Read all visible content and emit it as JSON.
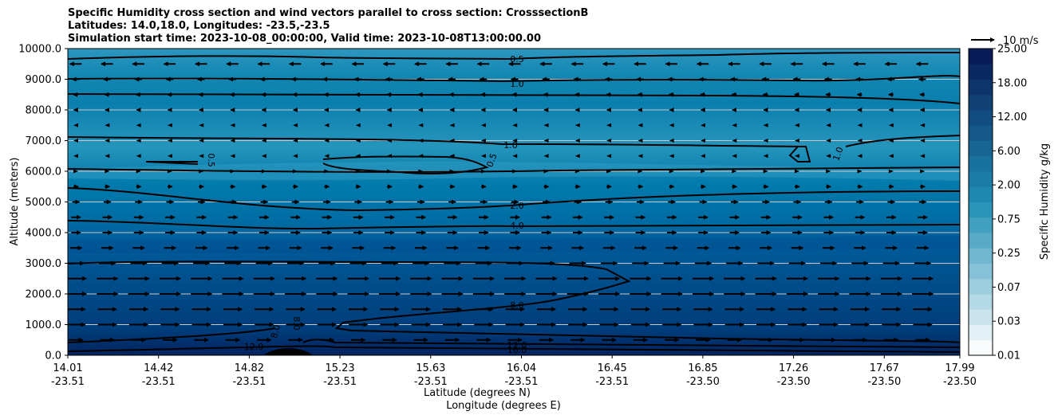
{
  "title_lines": [
    "Specific Humidity cross section and wind vectors parallel to cross section: CrosssectionB",
    "Latitudes: 14.0,18.0, Longitudes: -23.5,-23.5",
    "Simulation start time: 2023-10-08_00:00:00, Valid time: 2023-10-08T13:00:00.00"
  ],
  "chart_data": {
    "type": "contourf",
    "title": "Specific Humidity cross section and wind vectors parallel to cross section: CrosssectionB",
    "ylabel": "Altitude (meters)",
    "xlabel_lines": [
      "Latitude (degrees N)",
      "Longitude (degrees E)"
    ],
    "ylim": [
      0,
      10000
    ],
    "y_ticks": [
      0,
      1000,
      2000,
      3000,
      4000,
      5000,
      6000,
      7000,
      8000,
      9000,
      10000
    ],
    "y_tick_labels": [
      "0.0",
      "1000.0",
      "2000.0",
      "3000.0",
      "4000.0",
      "5000.0",
      "6000.0",
      "7000.0",
      "8000.0",
      "9000.0",
      "10000.0"
    ],
    "x_ticks": [
      {
        "lat": "14.01",
        "lon": "-23.51"
      },
      {
        "lat": "14.42",
        "lon": "-23.51"
      },
      {
        "lat": "14.82",
        "lon": "-23.51"
      },
      {
        "lat": "15.23",
        "lon": "-23.51"
      },
      {
        "lat": "15.63",
        "lon": "-23.51"
      },
      {
        "lat": "16.04",
        "lon": "-23.51"
      },
      {
        "lat": "16.45",
        "lon": "-23.51"
      },
      {
        "lat": "16.85",
        "lon": "-23.50"
      },
      {
        "lat": "17.26",
        "lon": "-23.50"
      },
      {
        "lat": "17.67",
        "lon": "-23.50"
      },
      {
        "lat": "17.99",
        "lon": "-23.50"
      }
    ],
    "grid": true,
    "colorbar": {
      "label": "Specific Humidity g/kg",
      "tick_labels": [
        "0.01",
        "0.03",
        "0.07",
        "0.25",
        "0.75",
        "2.00",
        "6.00",
        "12.00",
        "18.00",
        "25.00"
      ],
      "n_levels": 20,
      "color_low": "#f7fbfc",
      "color_mid": "#1f8fb5",
      "color_high": "#081d58"
    },
    "contour_labels": [
      "0.5",
      "1.0",
      "1.0",
      "0.5",
      "0.5",
      "1.0",
      "2.0",
      "4.0",
      "8.0",
      "8.0",
      "8.0",
      "12.0",
      "12.0",
      "16.0"
    ],
    "quiver": {
      "key_label": "10 m/s",
      "rows": [
        {
          "altitude": 500,
          "u": 6
        },
        {
          "altitude": 1000,
          "u": 8
        },
        {
          "altitude": 1500,
          "u": 8
        },
        {
          "altitude": 2000,
          "u": 9
        },
        {
          "altitude": 2500,
          "u": 9
        },
        {
          "altitude": 3000,
          "u": 7
        },
        {
          "altitude": 3500,
          "u": 5
        },
        {
          "altitude": 4000,
          "u": 4
        },
        {
          "altitude": 4500,
          "u": 4
        },
        {
          "altitude": 5000,
          "u": 3
        },
        {
          "altitude": 5500,
          "u": 2
        },
        {
          "altitude": 6000,
          "u": 1
        },
        {
          "altitude": 6500,
          "u": -1
        },
        {
          "altitude": 7000,
          "u": -1
        },
        {
          "altitude": 7500,
          "u": -1
        },
        {
          "altitude": 8000,
          "u": -1.5
        },
        {
          "altitude": 8500,
          "u": -2
        },
        {
          "altitude": 9000,
          "u": -3
        },
        {
          "altitude": 9500,
          "u": -5
        }
      ]
    }
  }
}
